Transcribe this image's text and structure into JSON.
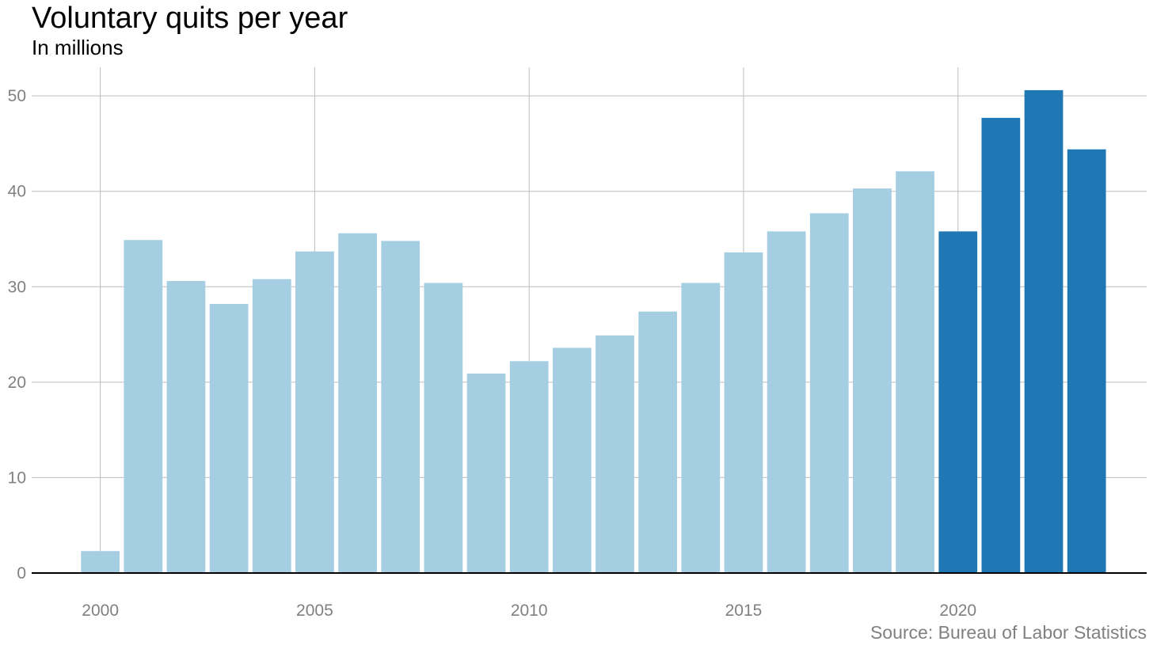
{
  "title": "Voluntary quits per year",
  "subtitle": "In millions",
  "source": "Source: Bureau of Labor Statistics",
  "colors": {
    "pre2020": "#a6cee3",
    "post2020": "#1f78b4",
    "grid": "#bdbdbd",
    "axis": "#000000",
    "tick_text": "#808080"
  },
  "chart_data": {
    "type": "bar",
    "title": "Voluntary quits per year",
    "subtitle": "In millions",
    "xlabel": "",
    "ylabel": "",
    "x": [
      2000,
      2001,
      2002,
      2003,
      2004,
      2005,
      2006,
      2007,
      2008,
      2009,
      2010,
      2011,
      2012,
      2013,
      2014,
      2015,
      2016,
      2017,
      2018,
      2019,
      2020,
      2021,
      2022,
      2023
    ],
    "values": [
      2.3,
      34.9,
      30.6,
      28.2,
      30.8,
      33.7,
      35.6,
      34.8,
      30.4,
      20.9,
      22.2,
      23.6,
      24.9,
      27.4,
      30.4,
      33.6,
      35.8,
      37.7,
      40.3,
      42.1,
      35.8,
      47.7,
      50.6,
      44.4
    ],
    "highlight_from_year": 2020,
    "x_ticks": [
      "2000",
      "2005",
      "2010",
      "2015",
      "2020"
    ],
    "y_ticks": [
      "0",
      "10",
      "20",
      "30",
      "40",
      "50"
    ],
    "xlim": [
      1998.4,
      2024.4
    ],
    "ylim": [
      0,
      53
    ],
    "grid": true,
    "legend": "none"
  }
}
